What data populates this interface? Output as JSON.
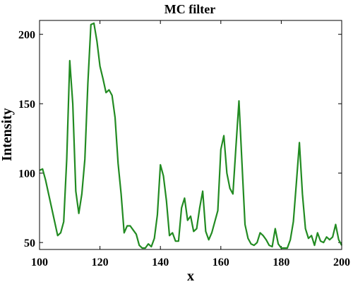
{
  "chart_data": {
    "type": "line",
    "title": "MC filter",
    "xlabel": "x",
    "ylabel": "Intensity",
    "xlim": [
      100,
      200
    ],
    "ylim": [
      45,
      210
    ],
    "xticks": [
      100,
      120,
      140,
      160,
      180,
      200
    ],
    "yticks": [
      50,
      100,
      150,
      200
    ],
    "grid": false,
    "line_color": "#228B22",
    "series": [
      {
        "x": [
          100,
          101,
          102,
          103,
          104,
          105,
          106,
          107,
          108,
          109,
          110,
          111,
          112,
          113,
          114,
          115,
          116,
          117,
          118,
          119,
          120,
          121,
          122,
          123,
          124,
          125,
          126,
          127,
          128,
          129,
          130,
          131,
          132,
          133,
          134,
          135,
          136,
          137,
          138,
          139,
          140,
          141,
          142,
          143,
          144,
          145,
          146,
          147,
          148,
          149,
          150,
          151,
          152,
          153,
          154,
          155,
          156,
          157,
          158,
          159,
          160,
          161,
          162,
          163,
          164,
          165,
          166,
          167,
          168,
          169,
          170,
          171,
          172,
          173,
          174,
          175,
          176,
          177,
          178,
          179,
          180,
          181,
          182,
          183,
          184,
          185,
          186,
          187,
          188,
          189,
          190,
          191,
          192,
          193,
          194,
          195,
          196,
          197,
          198,
          199,
          200
        ],
        "y": [
          102,
          103,
          95,
          85,
          75,
          65,
          55,
          57,
          65,
          110,
          181,
          150,
          87,
          71,
          85,
          110,
          165,
          207,
          208,
          195,
          177,
          168,
          158,
          160,
          156,
          140,
          107,
          85,
          57,
          62,
          62,
          59,
          56,
          48,
          46,
          46,
          49,
          47,
          53,
          70,
          106,
          98,
          80,
          55,
          57,
          51,
          51,
          75,
          82,
          66,
          69,
          58,
          60,
          75,
          87,
          58,
          52,
          57,
          65,
          73,
          117,
          127,
          100,
          89,
          85,
          119,
          152,
          107,
          63,
          53,
          49,
          48,
          50,
          57,
          55,
          52,
          48,
          47,
          60,
          49,
          46,
          46,
          46,
          52,
          65,
          93,
          122,
          85,
          60,
          53,
          55,
          48,
          57,
          51,
          50,
          54,
          52,
          54,
          63,
          52,
          48
        ]
      }
    ]
  }
}
